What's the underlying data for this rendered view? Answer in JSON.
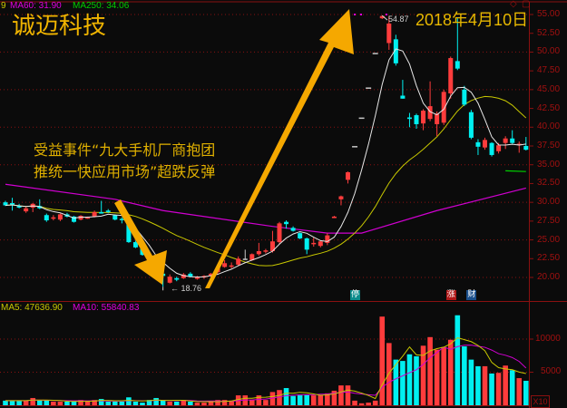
{
  "header": {
    "stock_name": "诚迈科技",
    "date": "2018年4月10日",
    "legend": [
      {
        "text": "9",
        "color": "#c8c800"
      },
      {
        "text": "MA60: 31.90",
        "color": "#e000e0"
      },
      {
        "text": "MA250: 34.06",
        "color": "#00d000"
      }
    ],
    "volume_legend": [
      {
        "text": "MA5: 47636.90",
        "color": "#c8c800"
      },
      {
        "text": "MA10: 55840.83",
        "color": "#e000e0"
      }
    ]
  },
  "annotation": {
    "line1": "受益事件“九大手机厂商抱团",
    "line2": "推统一快应用市场”超跌反弹"
  },
  "price_notes": {
    "low": "18.76",
    "high": "54.87"
  },
  "markers": [
    {
      "text": "停",
      "color": "#0a8c8c"
    },
    {
      "text": "涨",
      "color": "#b01818"
    },
    {
      "text": "财",
      "color": "#1a4f8c"
    }
  ],
  "volume_multiplier": "X10",
  "icons": [
    "diamond-icon",
    "square-icon"
  ],
  "colors": {
    "up": "#ff3c3c",
    "down": "#00f0f0",
    "flat": "#c8c8c8",
    "ma5": "#e8e8e8",
    "ma20": "#c8c800",
    "ma60": "#d000d0",
    "ma250": "#00d000",
    "arrow": "#f5a800",
    "grid": "#8a1010"
  },
  "chart_data": {
    "type": "candlestick",
    "price_axis": {
      "ticks": [
        "55.00",
        "52.50",
        "50.00",
        "47.50",
        "45.00",
        "42.50",
        "40.00",
        "37.50",
        "35.00",
        "32.50",
        "30.00",
        "27.50",
        "25.00",
        "22.50",
        "20.00"
      ],
      "range": [
        20,
        55
      ]
    },
    "volume_axis": {
      "ticks": [
        "10000",
        "5000"
      ],
      "max": 15000
    },
    "grid": true,
    "ohlc": [
      [
        30.0,
        30.2,
        29.5,
        29.6
      ],
      [
        29.9,
        30.6,
        28.9,
        29.7
      ],
      [
        29.5,
        29.8,
        29.2,
        29.3
      ],
      [
        28.8,
        29.4,
        28.6,
        29.2
      ],
      [
        29.3,
        29.9,
        28.7,
        29.8
      ],
      [
        29.5,
        30.4,
        29.1,
        29.2
      ],
      [
        28.3,
        28.5,
        27.4,
        27.6
      ],
      [
        27.9,
        28.3,
        27.6,
        28.0
      ],
      [
        27.7,
        28.5,
        27.5,
        28.4
      ],
      [
        28.4,
        28.6,
        28.0,
        28.1
      ],
      [
        28.1,
        28.2,
        27.3,
        27.4
      ],
      [
        27.7,
        28.3,
        27.6,
        28.2
      ],
      [
        27.9,
        28.1,
        27.8,
        28.0
      ],
      [
        28.1,
        28.9,
        28.0,
        28.7
      ],
      [
        28.7,
        30.2,
        28.5,
        28.5
      ],
      [
        28.9,
        29.1,
        28.6,
        28.7
      ],
      [
        28.3,
        28.4,
        27.6,
        27.7
      ],
      [
        27.8,
        28.0,
        27.2,
        27.7
      ],
      [
        27.4,
        27.6,
        24.6,
        24.7
      ],
      [
        24.7,
        24.9,
        23.9,
        24.0
      ],
      [
        24.0,
        24.2,
        22.9,
        23.0
      ],
      [
        23.0,
        23.2,
        21.9,
        22.0
      ],
      [
        22.0,
        22.1,
        20.7,
        20.8
      ],
      [
        20.5,
        20.7,
        18.76,
        20.2
      ],
      [
        19.3,
        20.4,
        19.2,
        20.1
      ],
      [
        19.9,
        20.1,
        19.5,
        19.7
      ],
      [
        19.9,
        20.6,
        19.8,
        20.4
      ],
      [
        20.5,
        20.7,
        20.0,
        20.1
      ],
      [
        19.9,
        20.2,
        19.7,
        20.0
      ],
      [
        20.0,
        20.3,
        19.8,
        20.2
      ],
      [
        20.2,
        20.6,
        20.0,
        20.5
      ],
      [
        20.7,
        21.5,
        20.5,
        21.3
      ],
      [
        21.4,
        22.3,
        21.3,
        21.9
      ],
      [
        21.5,
        22.0,
        21.2,
        21.6
      ],
      [
        21.7,
        22.8,
        21.5,
        22.5
      ],
      [
        22.5,
        23.7,
        22.4,
        22.5
      ],
      [
        22.3,
        23.2,
        22.2,
        23.1
      ],
      [
        23.1,
        24.6,
        22.9,
        23.5
      ],
      [
        23.5,
        23.8,
        23.2,
        23.6
      ],
      [
        23.5,
        26.2,
        23.3,
        24.8
      ],
      [
        24.7,
        27.4,
        24.5,
        27.2
      ],
      [
        27.4,
        27.6,
        26.5,
        27.1
      ],
      [
        26.6,
        26.8,
        26.1,
        26.2
      ],
      [
        25.9,
        26.0,
        25.1,
        25.2
      ],
      [
        25.2,
        25.3,
        23.1,
        23.7
      ],
      [
        24.5,
        25.3,
        24.1,
        24.6
      ],
      [
        24.2,
        24.9,
        24.0,
        24.8
      ],
      [
        24.6,
        25.9,
        24.3,
        25.6
      ],
      [
        27.9,
        28.2,
        27.9,
        28.1
      ],
      [
        30.4,
        30.9,
        29.6,
        30.8
      ],
      [
        33.0,
        34.1,
        32.5,
        34.0
      ],
      [
        37.4,
        37.4,
        37.4,
        37.4
      ],
      [
        41.2,
        41.2,
        41.2,
        41.2
      ],
      [
        45.2,
        45.2,
        45.2,
        45.2
      ],
      [
        49.8,
        49.8,
        49.8,
        49.8
      ],
      [
        54.5,
        54.87,
        54.4,
        54.8
      ],
      [
        51.2,
        54.8,
        50.3,
        53.8
      ],
      [
        51.7,
        52.3,
        48.2,
        48.5
      ],
      [
        44.2,
        46.3,
        43.8,
        43.8
      ],
      [
        41.3,
        41.9,
        40.0,
        41.1
      ],
      [
        41.6,
        41.8,
        39.8,
        40.4
      ],
      [
        40.5,
        42.4,
        39.6,
        42.2
      ],
      [
        41.1,
        46.1,
        40.8,
        42.8
      ],
      [
        40.4,
        42.1,
        38.8,
        41.8
      ],
      [
        40.6,
        45.0,
        40.3,
        44.7
      ],
      [
        44.5,
        49.4,
        43.8,
        49.2
      ],
      [
        48.8,
        54.5,
        47.6,
        47.8
      ],
      [
        45.0,
        45.5,
        42.8,
        43.0
      ],
      [
        42.0,
        42.3,
        38.4,
        38.6
      ],
      [
        38.0,
        38.4,
        36.3,
        37.4
      ],
      [
        37.3,
        38.6,
        37.0,
        38.3
      ],
      [
        37.9,
        38.0,
        36.1,
        36.3
      ],
      [
        36.8,
        37.9,
        36.5,
        37.6
      ],
      [
        37.9,
        38.8,
        37.1,
        38.5
      ],
      [
        38.5,
        39.6,
        37.8,
        37.9
      ],
      [
        37.6,
        38.1,
        36.6,
        37.8
      ],
      [
        37.5,
        38.7,
        36.9,
        37.0
      ]
    ],
    "volume": [
      700,
      700,
      700,
      700,
      1100,
      700,
      700,
      550,
      550,
      550,
      550,
      800,
      550,
      800,
      950,
      550,
      550,
      550,
      1200,
      550,
      400,
      800,
      1100,
      800,
      550,
      550,
      800,
      550,
      400,
      400,
      550,
      800,
      800,
      700,
      1500,
      1500,
      800,
      1500,
      800,
      2000,
      2300,
      2600,
      1400,
      1500,
      1600,
      1500,
      1500,
      1800,
      2200,
      3000,
      3000,
      700,
      300,
      400,
      700,
      13400,
      9400,
      6900,
      6700,
      7700,
      7400,
      9000,
      10300,
      8400,
      8800,
      9900,
      13600,
      8900,
      6900,
      5900,
      5900,
      4800,
      4900,
      6000,
      5300,
      4100,
      3700
    ],
    "ma60_points": [
      [
        0,
        32.4
      ],
      [
        16,
        30.4
      ],
      [
        23,
        28.9
      ],
      [
        39,
        26.8
      ],
      [
        47,
        25.9
      ],
      [
        52,
        25.9
      ],
      [
        63,
        28.9
      ],
      [
        76,
        31.9
      ]
    ],
    "ma250_points": [
      [
        73,
        34.2
      ],
      [
        76,
        34.1
      ]
    ],
    "marker_candles": [
      51,
      65,
      68
    ],
    "low_candle": 23,
    "high_candle": 55
  }
}
